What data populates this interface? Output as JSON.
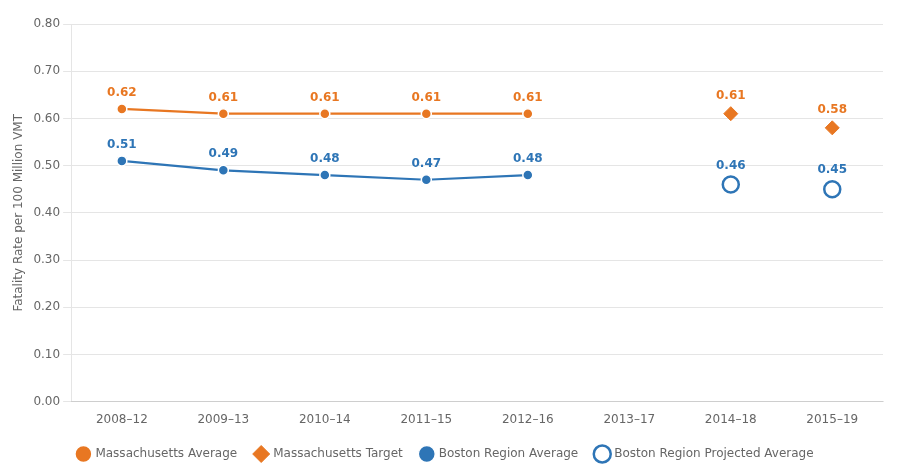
{
  "chart_data": {
    "type": "line",
    "categories": [
      "2008–12",
      "2009–13",
      "2010–14",
      "2011–15",
      "2012–16",
      "2013–17",
      "2014–18",
      "2015–19"
    ],
    "series": [
      {
        "name": "Massachusetts Average",
        "type": "line",
        "marker": "circle",
        "line_style": "solid",
        "color": "#E87722",
        "values": [
          0.62,
          0.61,
          0.61,
          0.61,
          0.61,
          null,
          null,
          null
        ]
      },
      {
        "name": "Massachusetts Target",
        "type": "scatter",
        "marker": "diamond",
        "color": "#E87722",
        "values": [
          null,
          null,
          null,
          null,
          null,
          null,
          0.61,
          0.58
        ]
      },
      {
        "name": "Boston Region Average",
        "type": "line",
        "marker": "circle",
        "line_style": "solid",
        "color": "#2E75B6",
        "values": [
          0.51,
          0.49,
          0.48,
          0.47,
          0.48,
          null,
          null,
          null
        ]
      },
      {
        "name": "Boston Region Projected Average",
        "type": "scatter",
        "marker": "open_circle",
        "color": "#2E75B6",
        "values": [
          null,
          null,
          null,
          null,
          null,
          null,
          0.46,
          0.45
        ]
      }
    ],
    "y_label": "Fatality Rate per 100 Million VMT",
    "ylim": [
      0.0,
      0.8
    ],
    "yticks": [
      {
        "value": 0.0,
        "label": "0.00"
      },
      {
        "value": 0.1,
        "label": "0.10"
      },
      {
        "value": 0.2,
        "label": "0.20"
      },
      {
        "value": 0.3,
        "label": "0.30"
      },
      {
        "value": 0.4,
        "label": "0.40"
      },
      {
        "value": 0.5,
        "label": "0.50"
      },
      {
        "value": 0.6,
        "label": "0.60"
      },
      {
        "value": 0.7,
        "label": "0.70"
      },
      {
        "value": 0.8,
        "label": "0.80"
      }
    ],
    "grid": true,
    "legend": "bottom",
    "data_labels": true
  }
}
